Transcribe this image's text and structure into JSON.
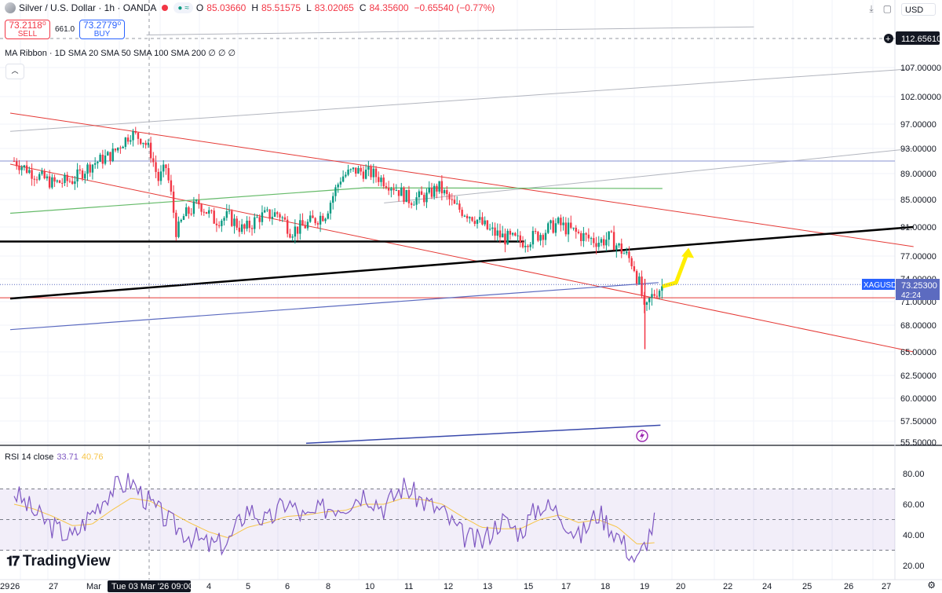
{
  "header": {
    "symbol": "Silver / U.S. Dollar · 1h · OANDA",
    "ohlc": [
      {
        "k": "O",
        "v": "85.03660"
      },
      {
        "k": "H",
        "v": "85.51575"
      },
      {
        "k": "L",
        "v": "83.02065"
      },
      {
        "k": "C",
        "v": "84.35600"
      }
    ],
    "change": "−0.65540 (−0.77%)",
    "currency": "USD"
  },
  "trade": {
    "sell_price": "73.2118⁰",
    "sell_label": "SELL",
    "spread": "661.0",
    "buy_price": "73.2779⁰",
    "buy_label": "BUY"
  },
  "indicators": {
    "ma_ribbon": "MA Ribbon · 1D SMA 20 SMA 50 SMA 100 SMA 200 ∅ ∅ ∅",
    "rsi_label": "RSI 14 close",
    "rsi_value": "33.71",
    "rsi_ma_value": "40.76"
  },
  "branding": "TradingView",
  "colors": {
    "up": "#089981",
    "down": "#f23645",
    "channel": "#e53935",
    "rsi": "#7e57c2",
    "rsi_ma": "#f7c548",
    "arrow": "#ffee00"
  },
  "chart_data": [
    {
      "type": "candlestick",
      "y_ticks": [
        "107.00000",
        "102.00000",
        "97.00000",
        "93.00000",
        "89.00000",
        "85.00000",
        "81.00000",
        "77.00000",
        "74.00000",
        "71.00000",
        "68.00000",
        "65.00000",
        "62.50000",
        "60.00000",
        "57.50000",
        "55.50000"
      ],
      "x_ticks": [
        "26",
        "27",
        "Mar",
        "4",
        "5",
        "6",
        "8",
        "10",
        "11",
        "12",
        "13",
        "15",
        "17",
        "18",
        "19",
        "20",
        "22",
        "24",
        "25",
        "26",
        "27",
        "29"
      ],
      "crosshair_label": "Tue 03 Mar '26  09:00",
      "top_price_label": "112.65610",
      "last_price": {
        "symbol": "XAGUSD",
        "price": "73.25300",
        "countdown": "42:24"
      },
      "path": [
        [
          0,
          91.0
        ],
        [
          1,
          89.0
        ],
        [
          2,
          87.5
        ],
        [
          3,
          88.0
        ],
        [
          4,
          90.5
        ],
        [
          5,
          92.0
        ],
        [
          6,
          95.5
        ],
        [
          6.6,
          94.5
        ],
        [
          7,
          92.5
        ],
        [
          7.4,
          88.0
        ],
        [
          7.8,
          90.0
        ],
        [
          8.1,
          85.0
        ],
        [
          8.35,
          80.0
        ],
        [
          8.7,
          82.5
        ],
        [
          9.5,
          84.5
        ],
        [
          10.3,
          82.0
        ],
        [
          11,
          82.5
        ],
        [
          11.8,
          80.5
        ],
        [
          12.6,
          82.5
        ],
        [
          13.6,
          83.0
        ],
        [
          14.2,
          80.5
        ],
        [
          14.8,
          81.0
        ],
        [
          16.0,
          83.0
        ],
        [
          16.8,
          88.5
        ],
        [
          17.5,
          89.5
        ],
        [
          18.4,
          89.0
        ],
        [
          19.5,
          87.0
        ],
        [
          20.3,
          85.0
        ],
        [
          21.2,
          85.5
        ],
        [
          21.8,
          87.0
        ],
        [
          22.6,
          84.0
        ],
        [
          23.6,
          82.5
        ],
        [
          24.4,
          80.5
        ],
        [
          25.2,
          79.5
        ],
        [
          26.0,
          79.0
        ],
        [
          26.6,
          79.5
        ],
        [
          27.3,
          80.5
        ],
        [
          27.9,
          81.5
        ],
        [
          28.6,
          80.5
        ],
        [
          29.4,
          79.5
        ],
        [
          30.1,
          79.0
        ],
        [
          30.6,
          79.5
        ],
        [
          31.3,
          77.5
        ],
        [
          31.8,
          76.0
        ],
        [
          32.2,
          72.5
        ],
        [
          32.4,
          69.0
        ],
        [
          32.6,
          71.0
        ],
        [
          33.0,
          72.5
        ],
        [
          33.4,
          73.2
        ]
      ],
      "lines": {
        "horizontal_black": 79.0,
        "horizontal_red": 71.5,
        "horizontal_blue": 91.0,
        "black_trend": [
          [
            -0.2,
            71.4
          ],
          [
            46.2,
            81.0
          ]
        ],
        "red_channel_upper": [
          [
            -0.2,
            99.0
          ],
          [
            46.2,
            78.3
          ]
        ],
        "red_channel_lower": [
          [
            -0.2,
            90.5
          ],
          [
            46.2,
            65.0
          ]
        ],
        "green_ma": [
          [
            -0.2,
            83.0
          ],
          [
            18.0,
            86.8
          ],
          [
            33.3,
            86.7
          ]
        ],
        "blue_ma": [
          [
            -0.2,
            67.5
          ],
          [
            33.1,
            73.5
          ]
        ],
        "navy_ma": [
          [
            15.0,
            55.4
          ],
          [
            33.2,
            57.1
          ]
        ],
        "grey_channel_upper": [
          [
            6.8,
            112.6
          ],
          [
            38.0,
            114.0
          ]
        ],
        "grey_1": [
          [
            -0.2,
            95.8
          ],
          [
            46.2,
            106.8
          ]
        ],
        "grey_2": [
          [
            19.0,
            84.5
          ],
          [
            46.2,
            93.0
          ]
        ],
        "yellow_arrow": [
          [
            33.3,
            73.0
          ],
          [
            34.0,
            73.5
          ],
          [
            34.6,
            77.6
          ]
        ]
      }
    },
    {
      "type": "line",
      "name": "RSI 14 close",
      "y_ticks": [
        "80.00",
        "60.00",
        "40.00",
        "20.00"
      ],
      "bands": [
        70,
        50,
        30
      ],
      "x": [
        0,
        1,
        2,
        3,
        4,
        5,
        6,
        7,
        8,
        9,
        10,
        11,
        12,
        13,
        14,
        15,
        16,
        17,
        18,
        19,
        20,
        21,
        22,
        23,
        24,
        25,
        26,
        27,
        28,
        29,
        30,
        31,
        32,
        33
      ],
      "rsi": [
        68,
        55,
        45,
        38,
        55,
        70,
        75,
        60,
        48,
        40,
        33,
        35,
        58,
        48,
        62,
        50,
        58,
        60,
        68,
        58,
        72,
        62,
        55,
        40,
        35,
        50,
        42,
        60,
        55,
        38,
        55,
        40,
        22,
        52
      ],
      "rsi_ma": [
        60,
        57,
        52,
        46,
        47,
        56,
        64,
        62,
        55,
        48,
        42,
        38,
        45,
        48,
        52,
        53,
        55,
        56,
        60,
        60,
        64,
        63,
        60,
        52,
        45,
        44,
        44,
        50,
        53,
        48,
        50,
        45,
        34,
        35
      ]
    }
  ]
}
